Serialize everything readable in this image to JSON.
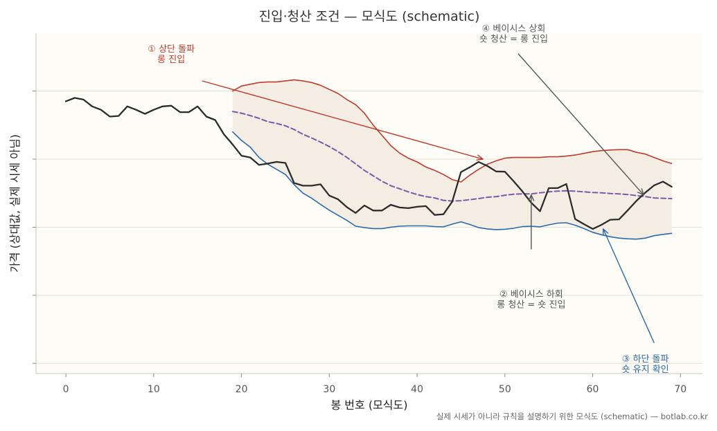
{
  "chart_data": {
    "type": "line",
    "title": "진입·청산 조건 — 모식도 (schematic)",
    "xlabel": "봉 번호 (모식도)",
    "ylabel": "가격 (상대값, 실제 시세 아님)",
    "footer": "실제 시세가 아니라 규칙을 설명하기 위한 모식도 (schematic) — botlab.co.kr",
    "xlim": [
      -3.4,
      72.5
    ],
    "ylim": [
      0,
      100
    ],
    "xticks": [
      0,
      10,
      20,
      30,
      40,
      50,
      60,
      70
    ],
    "yticks": [
      3,
      23,
      43,
      63,
      83
    ],
    "grid": "horizontal",
    "colors": {
      "price": "#2b2b2b",
      "upper": "#c0392b",
      "lower": "#2a6aa8",
      "basis": "#7a5aa8",
      "band_fill": "#f3ede4",
      "plot_bg": "#fdfcf7",
      "gray_note": "#666666"
    },
    "price": {
      "x": [
        0,
        1,
        2,
        3,
        4,
        5,
        6,
        7,
        8,
        9,
        10,
        11,
        12,
        13,
        14,
        15,
        16,
        17,
        18,
        19,
        20,
        21,
        22,
        23,
        24,
        25,
        26,
        27,
        28,
        29,
        30,
        31,
        32,
        33,
        34,
        35,
        36,
        37,
        38,
        39,
        40,
        41,
        42,
        43,
        44,
        45,
        46,
        47,
        48,
        49,
        50,
        51,
        52,
        53,
        54,
        55,
        56,
        57,
        58,
        59,
        60,
        61,
        62,
        63,
        64,
        65,
        66,
        67,
        68,
        69
      ],
      "y": [
        80,
        81,
        80.5,
        78.5,
        77.5,
        75.5,
        75.7,
        78.5,
        77.5,
        76.3,
        77.5,
        78.5,
        78.7,
        76.8,
        76.8,
        78.5,
        75.5,
        74.5,
        70.3,
        67.3,
        64,
        63.5,
        61.3,
        61.7,
        62.2,
        61.9,
        56,
        55.2,
        55.2,
        55.6,
        52.3,
        51.2,
        48.9,
        47.2,
        49.4,
        47.9,
        47.9,
        49.6,
        48.8,
        48.6,
        49,
        49.2,
        46.6,
        46.8,
        50.5,
        59.2,
        60.6,
        62.2,
        61,
        59.4,
        59.3,
        56.5,
        53.5,
        50.2,
        47.7,
        54.5,
        54.5,
        55.7,
        45.4,
        43.9,
        42.5,
        43.7,
        45.2,
        45.3,
        48,
        50.8,
        53.2,
        55.3,
        56.4,
        54.9
      ]
    },
    "upper": {
      "x": [
        19,
        20,
        21,
        22,
        23,
        24,
        25,
        26,
        27,
        28,
        29,
        30,
        31,
        32,
        33,
        34,
        35,
        36,
        37,
        38,
        39,
        40,
        41,
        42,
        43,
        44,
        45,
        46,
        47,
        48,
        49,
        50,
        51,
        52,
        53,
        54,
        55,
        56,
        57,
        58,
        59,
        60,
        61,
        62,
        63,
        64,
        65,
        66,
        67,
        68,
        69
      ],
      "y": [
        83,
        84.5,
        85,
        85.5,
        85.7,
        85.7,
        86,
        86.3,
        86,
        85.5,
        84.7,
        83.5,
        82.3,
        80.5,
        79,
        76.5,
        73,
        70,
        67,
        64.8,
        63.3,
        62.2,
        60.7,
        59.7,
        58.5,
        57,
        56.3,
        58.3,
        60,
        61.5,
        62.5,
        63.3,
        63.5,
        63.5,
        63.5,
        63.5,
        63.7,
        63.7,
        63.9,
        64.2,
        64.7,
        65.2,
        65.5,
        65.7,
        65.8,
        65.8,
        65,
        64.5,
        63.5,
        62.5,
        61.7
      ]
    },
    "lower": {
      "x": [
        19,
        20,
        21,
        22,
        23,
        24,
        25,
        26,
        27,
        28,
        29,
        30,
        31,
        32,
        33,
        34,
        35,
        36,
        37,
        38,
        39,
        40,
        41,
        42,
        43,
        44,
        45,
        46,
        47,
        48,
        49,
        50,
        51,
        52,
        53,
        54,
        55,
        56,
        57,
        58,
        59,
        60,
        61,
        62,
        63,
        64,
        65,
        66,
        67,
        68,
        69
      ],
      "y": [
        71,
        68.5,
        66.5,
        63.5,
        61.5,
        60,
        58.5,
        55.5,
        53,
        51.5,
        49.7,
        48,
        46.5,
        45,
        43.3,
        42.9,
        42.6,
        42.6,
        43,
        43.3,
        43.4,
        43.4,
        43.4,
        43.2,
        43.1,
        43.9,
        44.6,
        43.8,
        42.9,
        42.5,
        42.3,
        42.4,
        42.7,
        43.2,
        43.3,
        43.1,
        43.7,
        44.2,
        44.3,
        43.6,
        42.6,
        41.5,
        40.8,
        40.2,
        39.8,
        39.6,
        39.5,
        39.8,
        40.5,
        40.9,
        41.2
      ]
    },
    "basis": {
      "x": [
        19,
        20,
        21,
        22,
        23,
        24,
        25,
        26,
        27,
        28,
        29,
        30,
        31,
        32,
        33,
        34,
        35,
        36,
        37,
        38,
        39,
        40,
        41,
        42,
        43,
        44,
        45,
        46,
        47,
        48,
        49,
        50,
        51,
        52,
        53,
        54,
        55,
        56,
        57,
        58,
        59,
        60,
        61,
        62,
        63,
        64,
        65,
        66,
        67,
        68,
        69
      ],
      "y": [
        77,
        76.5,
        75.8,
        75,
        74,
        73.5,
        72.8,
        71.7,
        70.3,
        69.2,
        68,
        66.7,
        65.2,
        63.5,
        61.6,
        59.7,
        58.1,
        56.5,
        55.2,
        54.3,
        53.4,
        52.6,
        52,
        51.6,
        50.9,
        50.7,
        50.8,
        51.1,
        51.4,
        51.8,
        52,
        52.4,
        52.7,
        52.8,
        52.8,
        53.1,
        53.4,
        53.6,
        53.7,
        53.6,
        53.4,
        53.2,
        53.1,
        52.9,
        52.8,
        52.6,
        52.3,
        52,
        51.6,
        51.5,
        51.4
      ]
    },
    "annotations": [
      {
        "id": "upper-breakout",
        "lines": [
          "① 상단 돌파",
          "롱 진입"
        ],
        "color": "#c0392b",
        "text_x": 12,
        "text_y": 94.5,
        "arrow_from": [
          15.5,
          86
        ],
        "arrow_to": [
          47.5,
          63
        ]
      },
      {
        "id": "basis-down",
        "lines": [
          "② 베이시스 하회",
          "롱 청산 = 숏 진입"
        ],
        "color": "#555555",
        "text_x": 53,
        "text_y": 22.5,
        "arrow_from": [
          53,
          36.5
        ],
        "arrow_to": [
          53,
          52.5
        ]
      },
      {
        "id": "lower-breakout",
        "lines": [
          "③ 하단 돌파",
          "숏 유지 확인"
        ],
        "color": "#2a6aa8",
        "text_x": 66,
        "text_y": 3.5,
        "arrow_from": [
          67,
          9
        ],
        "arrow_to": [
          61.2,
          42.5
        ]
      },
      {
        "id": "basis-up",
        "lines": [
          "④ 베이시스 상회",
          "숏 청산 = 롱 진입"
        ],
        "color": "#555555",
        "text_x": 51,
        "text_y": 100.5,
        "arrow_from": [
          51.5,
          94
        ],
        "arrow_to": [
          65.8,
          52.5
        ]
      }
    ]
  }
}
